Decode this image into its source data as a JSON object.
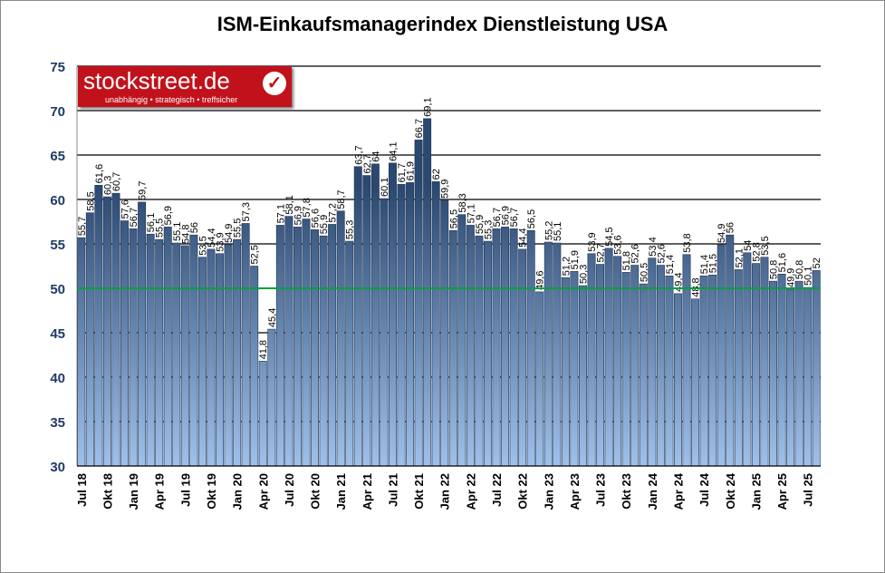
{
  "chart_data": {
    "type": "bar",
    "title": "ISM-Einkaufsmanagerindex Dienstleistung USA",
    "xlabel": "",
    "ylabel": "",
    "ylim": [
      30,
      75
    ],
    "yticks": [
      30,
      35,
      40,
      45,
      50,
      55,
      60,
      65,
      70,
      75
    ],
    "grid": "horizontal every 5",
    "reference_line": {
      "value": 50,
      "color": "#00a040"
    },
    "bar_color_top": "#2b4870",
    "bar_color_bottom": "#9fc0ea",
    "xtick_labels": [
      "Jul 18",
      "Okt 18",
      "Jan 19",
      "Apr 19",
      "Jul 19",
      "Okt 19",
      "Jan 20",
      "Apr 20",
      "Jul 20",
      "Okt 20",
      "Jan 21",
      "Apr 21",
      "Jul 21",
      "Okt 21",
      "Jan 22",
      "Apr 22",
      "Jul 22",
      "Okt 22",
      "Jan 23",
      "Apr 23",
      "Jul 23",
      "Okt 23",
      "Jan 24",
      "Apr 24",
      "Jul 24",
      "Okt 24",
      "Jan 25",
      "Apr 25",
      "Jul 25"
    ],
    "values": [
      55.7,
      58.5,
      61.6,
      60.3,
      60.7,
      57.6,
      56.7,
      59.7,
      56.1,
      55.5,
      56.9,
      55.1,
      54.8,
      56,
      53.5,
      54.4,
      53.9,
      54.9,
      55.5,
      57.3,
      52.5,
      41.8,
      45.4,
      57.1,
      58.1,
      56.9,
      57.8,
      56.6,
      55.9,
      57.2,
      58.7,
      55.3,
      63.7,
      62.7,
      64,
      60.1,
      64.1,
      61.7,
      61.9,
      66.7,
      69.1,
      62,
      59.9,
      56.5,
      58.3,
      57.1,
      55.9,
      55.3,
      56.7,
      56.9,
      56.7,
      54.4,
      56.5,
      49.6,
      55.2,
      55.1,
      51.2,
      51.9,
      50.3,
      53.9,
      52.7,
      54.5,
      53.6,
      51.8,
      52.6,
      50.5,
      53.4,
      52.6,
      51.4,
      49.4,
      53.8,
      48.8,
      51.4,
      51.5,
      54.9,
      56,
      52.1,
      54,
      52.8,
      53.5,
      50.8,
      51.6,
      49.9,
      50.8,
      50.1,
      52
    ]
  },
  "logo": {
    "name": "stockstreet.de",
    "tagline": "unabhängig • strategisch • treffsicher",
    "icon": "checkmark-icon"
  }
}
